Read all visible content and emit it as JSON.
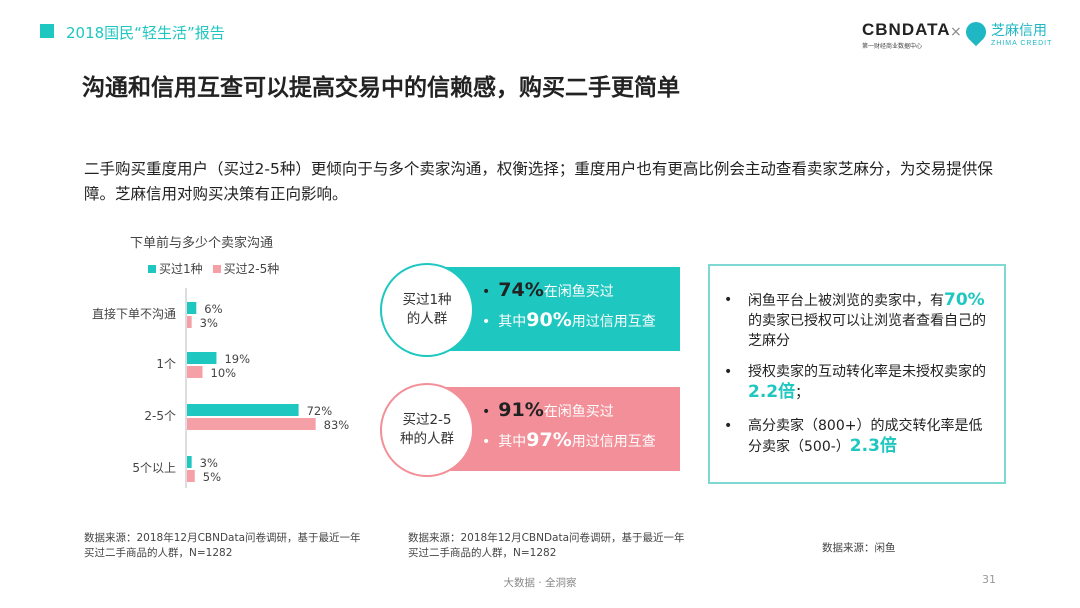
{
  "header": {
    "title": "2018国民“轻生活”报告",
    "logo_cbn": "CBNDATA",
    "logo_cbn_sub": "第一财经商业数据中心",
    "logo_x": "×",
    "logo_zhima": "芝麻信用",
    "logo_zhima_en": "ZHIMA CREDIT",
    "accent": "#1ec7c0"
  },
  "main": {
    "title": "沟通和信用互查可以提高交易中的信赖感，购买二手更简单",
    "desc": "二手购买重度用户（买过2-5种）更倾向于与多个卖家沟通，权衡选择；重度用户也有更高比例会主动查看卖家芝麻分，为交易提供保障。芝麻信用对购买决策有正向影响。"
  },
  "chart_data": {
    "type": "bar",
    "orientation": "horizontal",
    "title": "下单前与多少个卖家沟通",
    "categories": [
      "直接下单不沟通",
      "1个",
      "2-5个",
      "5个以上"
    ],
    "series": [
      {
        "name": "买过1种",
        "values": [
          6,
          19,
          72,
          3
        ],
        "labels": [
          "6%",
          "19%",
          "72%",
          "3%"
        ],
        "color": "#1ec7c0"
      },
      {
        "name": "买过2-5种",
        "values": [
          3,
          10,
          83,
          5
        ],
        "labels": [
          "3%",
          "10%",
          "83%",
          "5%"
        ],
        "color": "#f4a0a6"
      }
    ],
    "xlim": [
      0,
      100
    ],
    "legend": "top-left"
  },
  "cards": [
    {
      "group": "买过1种的人群",
      "color": "#1ec7c0",
      "line1_num": "74%",
      "line1_text": "在闲鱼买过",
      "line2_prefix": "其中",
      "line2_num": "90%",
      "line2_text": "用过信用互查"
    },
    {
      "group": "买过2-5种的人群",
      "color": "#f28f98",
      "line1_num": "91%",
      "line1_text": "在闲鱼买过",
      "line2_prefix": "其中",
      "line2_num": "97%",
      "line2_text": "用过信用互查"
    }
  ],
  "notes": {
    "bullet": "•",
    "item1_a": "闲鱼平台上被浏览的卖家中，有",
    "item1_hl": "70%",
    "item1_b": "的卖家已授权可以让浏览者查看自己的芝麻分",
    "item2_a": "授权卖家的互动转化率是未授权卖家的",
    "item2_hl": "2.2倍",
    "item2_b": "；",
    "item3_a": "高分卖家（800+）的成交转化率是低分卖家（500-）",
    "item3_hl": "2.3倍"
  },
  "sources": {
    "left": "数据来源：2018年12月CBNData问卷调研，基于最近一年买过二手商品的人群，N=1282",
    "middle": "数据来源：2018年12月CBNData问卷调研，基于最近一年买过二手商品的人群，N=1282",
    "right": "数据来源：闲鱼"
  },
  "footer": {
    "text": "大数据 · 全洞察",
    "page": "31"
  }
}
